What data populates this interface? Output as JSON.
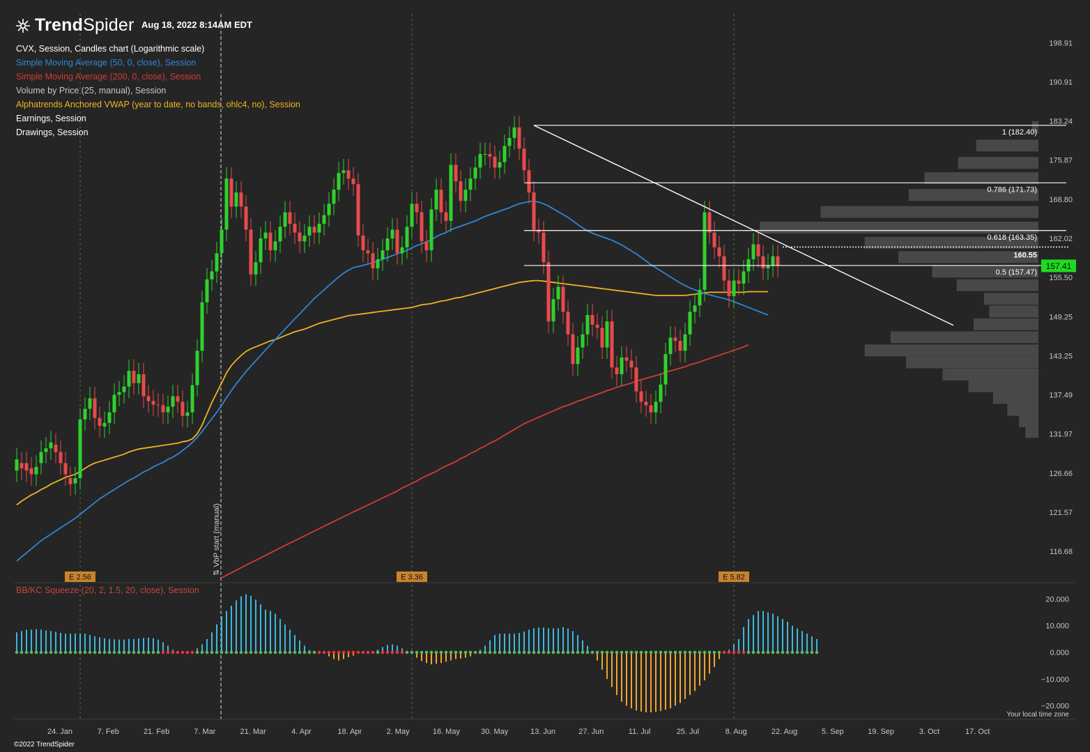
{
  "header": {
    "brand_bold": "Trend",
    "brand_light": "Spider",
    "timestamp": "Aug 18, 2022 8:14AM EDT"
  },
  "legend": [
    {
      "text": "CVX, Session, Candles chart (Logarithmic scale)",
      "color": "#ffffff"
    },
    {
      "text": "Simple Moving Average (50, 0, close), Session",
      "color": "#2f86d6"
    },
    {
      "text": "Simple Moving Average (200, 0, close), Session",
      "color": "#d23b35"
    },
    {
      "text": "Volume by Price (25, manual), Session",
      "color": "#c8c8c8"
    },
    {
      "text": "Alphatrends Anchored VWAP (year to date, no bands, ohlc4, no), Session",
      "color": "#f0b323"
    },
    {
      "text": "Earnings, Session",
      "color": "#ffffff"
    },
    {
      "text": "Drawings, Session",
      "color": "#ffffff"
    }
  ],
  "oscillator_label": "BB/KC Squeeze (20, 2, 1.5, 20, close), Session",
  "footer": {
    "copyright": "©2022 TrendSpider",
    "timezone_note": "Your local time zone"
  },
  "colors": {
    "up": "#2ed12e",
    "down": "#e8494a",
    "sma50": "#2f86d6",
    "sma200": "#d23b35",
    "vwap": "#f0b323",
    "background": "#252525"
  },
  "chart_data": {
    "type": "candlestick",
    "symbol": "CVX",
    "scale": "log",
    "price_ylim": [
      113,
      205
    ],
    "price_ticks": [
      198.91,
      190.91,
      183.24,
      175.87,
      168.8,
      162.02,
      155.5,
      149.25,
      143.25,
      137.49,
      131.97,
      126.66,
      121.57,
      116.68
    ],
    "x_ticks": [
      "24. Jan",
      "7. Feb",
      "21. Feb",
      "7. Mar",
      "21. Mar",
      "4. Apr",
      "18. Apr",
      "2. May",
      "16. May",
      "30. May",
      "13. Jun",
      "27. Jun",
      "11. Jul",
      "25. Jul",
      "8. Aug",
      "22. Aug",
      "5. Sep",
      "19. Sep",
      "3. Oct",
      "17. Oct"
    ],
    "closes": [
      128.5,
      127.3,
      127.0,
      126.5,
      127.5,
      129.5,
      130.0,
      130.8,
      129.5,
      128.0,
      126.5,
      125.2,
      126.0,
      134.0,
      135.5,
      137.0,
      134.2,
      133.1,
      133.5,
      135.0,
      137.5,
      137.9,
      138.7,
      141.0,
      139.2,
      140.5,
      137.3,
      136.6,
      136.1,
      136.0,
      135.0,
      135.8,
      137.3,
      136.5,
      134.5,
      135.0,
      138.9,
      144.0,
      151.5,
      155.2,
      156.5,
      159.5,
      163.5,
      172.5,
      167.5,
      170.0,
      167.5,
      163.5,
      156.0,
      158.0,
      162.0,
      163.0,
      160.0,
      161.5,
      164.0,
      166.5,
      164.5,
      163.0,
      161.5,
      162.5,
      164.0,
      163.0,
      164.5,
      166.0,
      168.0,
      170.5,
      173.5,
      174.0,
      172.5,
      171.5,
      162.5,
      160.0,
      159.5,
      157.0,
      158.5,
      160.0,
      162.0,
      163.5,
      159.5,
      160.5,
      164.0,
      168.0,
      166.5,
      161.5,
      160.0,
      167.0,
      170.5,
      166.5,
      165.0,
      175.0,
      172.0,
      168.5,
      170.5,
      172.5,
      174.5,
      177.0,
      177.0,
      176.5,
      174.5,
      175.5,
      178.5,
      180.0,
      182.0,
      178.0,
      174.0,
      170.0,
      163.5,
      163.0,
      158.0,
      148.5,
      152.0,
      154.0,
      150.0,
      146.5,
      142.0,
      144.5,
      146.5,
      149.5,
      148.0,
      147.5,
      144.5,
      148.5,
      141.5,
      140.5,
      143.0,
      142.5,
      141.5,
      138.0,
      136.5,
      136.0,
      135.0,
      136.5,
      139.0,
      143.5,
      146.0,
      145.5,
      144.0,
      146.5,
      150.0,
      151.0,
      153.5,
      166.5,
      163.0,
      160.5,
      159.0,
      155.0,
      152.5,
      155.0,
      154.5,
      156.5,
      158.5,
      161.0,
      159.0,
      157.0,
      157.5,
      159.0,
      157.41
    ],
    "opens": [
      127.0,
      128.0,
      128.0,
      127.3,
      126.5,
      128.0,
      129.5,
      130.0,
      130.5,
      129.5,
      128.0,
      126.0,
      125.3,
      126.0,
      134.0,
      135.5,
      137.0,
      134.2,
      133.0,
      133.5,
      135.0,
      137.5,
      137.9,
      138.7,
      141.0,
      139.2,
      140.5,
      137.3,
      136.6,
      136.1,
      136.0,
      135.0,
      135.8,
      137.3,
      136.5,
      134.5,
      135.0,
      138.9,
      144.0,
      151.5,
      155.2,
      156.5,
      159.5,
      163.5,
      172.5,
      167.5,
      170.0,
      167.5,
      163.5,
      156.0,
      158.0,
      162.0,
      163.0,
      160.0,
      161.5,
      164.0,
      166.5,
      164.5,
      163.0,
      161.5,
      162.5,
      164.0,
      163.0,
      164.5,
      166.0,
      168.0,
      170.5,
      173.5,
      174.0,
      172.5,
      171.5,
      162.5,
      160.0,
      159.5,
      157.0,
      158.5,
      160.0,
      162.0,
      163.5,
      159.5,
      160.5,
      164.0,
      168.0,
      166.5,
      161.5,
      160.0,
      167.0,
      170.5,
      166.5,
      165.0,
      175.0,
      172.0,
      168.5,
      170.5,
      172.5,
      174.5,
      177.0,
      177.0,
      176.5,
      174.5,
      175.5,
      178.5,
      180.0,
      182.0,
      178.0,
      174.0,
      170.0,
      163.5,
      163.0,
      158.0,
      148.5,
      152.0,
      154.0,
      150.0,
      146.5,
      142.0,
      144.5,
      146.5,
      149.5,
      148.0,
      147.5,
      144.5,
      148.5,
      141.5,
      140.5,
      143.0,
      142.5,
      141.5,
      138.0,
      136.5,
      136.0,
      135.0,
      136.5,
      139.0,
      143.5,
      146.0,
      145.5,
      144.0,
      146.5,
      150.0,
      151.0,
      153.5,
      166.5,
      163.0,
      160.5,
      159.0,
      155.0,
      152.5,
      155.0,
      154.5,
      156.5,
      158.5,
      161.0,
      159.0,
      157.0,
      157.5,
      159.0
    ],
    "sma50": [
      115.5,
      116.0,
      116.5,
      117.0,
      117.5,
      118.0,
      118.4,
      118.8,
      119.2,
      119.6,
      120.0,
      120.4,
      120.8,
      121.3,
      121.8,
      122.3,
      122.8,
      123.3,
      123.7,
      124.1,
      124.5,
      124.9,
      125.3,
      125.7,
      126.0,
      126.4,
      126.8,
      127.1,
      127.5,
      127.8,
      128.1,
      128.5,
      128.8,
      129.2,
      129.7,
      130.2,
      130.8,
      131.5,
      132.3,
      133.2,
      134.1,
      135.0,
      136.0,
      137.1,
      138.1,
      139.1,
      140.0,
      140.9,
      141.7,
      142.5,
      143.3,
      144.1,
      144.9,
      145.7,
      146.5,
      147.3,
      148.1,
      148.9,
      149.7,
      150.5,
      151.3,
      152.1,
      152.8,
      153.5,
      154.2,
      154.9,
      155.6,
      156.2,
      156.7,
      157.1,
      157.3,
      157.5,
      157.7,
      157.9,
      158.2,
      158.5,
      158.8,
      159.1,
      159.4,
      159.7,
      160.0,
      160.4,
      160.8,
      161.1,
      161.4,
      161.8,
      162.3,
      162.7,
      163.0,
      163.5,
      163.8,
      164.1,
      164.4,
      164.7,
      165.0,
      165.4,
      165.8,
      166.1,
      166.4,
      166.7,
      167.0,
      167.3,
      167.7,
      168.0,
      168.2,
      168.4,
      168.4,
      168.3,
      168.0,
      167.6,
      167.1,
      166.6,
      166.1,
      165.6,
      165.0,
      164.4,
      163.8,
      163.3,
      162.9,
      162.6,
      162.3,
      162.0,
      161.7,
      161.3,
      160.9,
      160.4,
      159.9,
      159.4,
      158.8,
      158.2,
      157.6,
      157.1,
      156.6,
      156.1,
      155.6,
      155.1,
      154.6,
      154.2,
      153.8,
      153.5,
      153.2,
      152.9,
      152.7,
      152.5,
      152.3,
      152.1,
      151.9,
      151.6,
      151.3,
      151.0,
      150.7,
      150.4,
      150.1,
      149.8,
      149.5
    ],
    "sma200": [
      null,
      null,
      null,
      null,
      null,
      null,
      null,
      null,
      null,
      null,
      null,
      null,
      null,
      null,
      null,
      null,
      null,
      null,
      null,
      null,
      null,
      null,
      null,
      null,
      null,
      null,
      null,
      null,
      null,
      null,
      null,
      null,
      null,
      null,
      null,
      null,
      null,
      null,
      null,
      null,
      null,
      null,
      113.5,
      113.8,
      114.1,
      114.4,
      114.7,
      115.0,
      115.3,
      115.6,
      115.9,
      116.2,
      116.5,
      116.8,
      117.1,
      117.4,
      117.7,
      118.0,
      118.3,
      118.6,
      118.9,
      119.2,
      119.5,
      119.8,
      120.1,
      120.4,
      120.7,
      121.0,
      121.3,
      121.6,
      121.9,
      122.2,
      122.5,
      122.8,
      123.1,
      123.4,
      123.7,
      124.0,
      124.3,
      124.7,
      125.0,
      125.3,
      125.6,
      126.0,
      126.3,
      126.6,
      126.9,
      127.3,
      127.6,
      127.9,
      128.2,
      128.6,
      128.9,
      129.3,
      129.6,
      130.0,
      130.3,
      130.7,
      131.0,
      131.4,
      131.8,
      132.2,
      132.6,
      133.0,
      133.4,
      133.7,
      134.0,
      134.3,
      134.6,
      134.9,
      135.2,
      135.5,
      135.8,
      136.0,
      136.3,
      136.6,
      136.8,
      137.1,
      137.3,
      137.6,
      137.8,
      138.1,
      138.3,
      138.6,
      138.8,
      139.0,
      139.2,
      139.5,
      139.7,
      139.9,
      140.1,
      140.3,
      140.5,
      140.8,
      141.0,
      141.2,
      141.4,
      141.6,
      141.9,
      142.1,
      142.3,
      142.6,
      142.8,
      143.1,
      143.3,
      143.6,
      143.8,
      144.1,
      144.3,
      144.6,
      144.9
    ],
    "vwap": [
      122.5,
      123.0,
      123.4,
      123.8,
      124.1,
      124.5,
      124.8,
      125.2,
      125.5,
      125.8,
      126.1,
      126.3,
      126.5,
      126.9,
      127.3,
      127.7,
      128.0,
      128.2,
      128.4,
      128.6,
      128.8,
      129.0,
      129.2,
      129.5,
      129.7,
      129.9,
      130.0,
      130.1,
      130.2,
      130.3,
      130.4,
      130.5,
      130.6,
      130.7,
      130.9,
      131.0,
      131.3,
      132.0,
      133.2,
      134.8,
      136.4,
      137.8,
      139.2,
      140.7,
      141.8,
      142.6,
      143.3,
      143.9,
      144.3,
      144.6,
      144.9,
      145.2,
      145.5,
      145.7,
      146.0,
      146.3,
      146.6,
      146.9,
      147.1,
      147.3,
      147.6,
      147.9,
      148.2,
      148.4,
      148.6,
      148.8,
      149.0,
      149.2,
      149.4,
      149.5,
      149.6,
      149.7,
      149.8,
      149.9,
      150.0,
      150.1,
      150.2,
      150.3,
      150.4,
      150.5,
      150.6,
      150.7,
      150.9,
      151.1,
      151.2,
      151.3,
      151.5,
      151.7,
      151.8,
      152.0,
      152.2,
      152.3,
      152.5,
      152.7,
      152.9,
      153.1,
      153.3,
      153.5,
      153.7,
      153.9,
      154.1,
      154.3,
      154.5,
      154.7,
      154.8,
      154.9,
      155.0,
      155.0,
      154.9,
      154.8,
      154.7,
      154.6,
      154.5,
      154.4,
      154.3,
      154.2,
      154.1,
      154.0,
      153.9,
      153.8,
      153.7,
      153.6,
      153.5,
      153.4,
      153.3,
      153.2,
      153.1,
      153.0,
      152.9,
      152.8,
      152.7,
      152.6,
      152.6,
      152.6,
      152.6,
      152.6,
      152.6,
      152.6,
      152.7,
      152.8,
      152.9,
      153.0,
      153.1,
      153.1,
      153.1,
      153.1,
      153.1,
      153.1,
      153.1,
      153.1,
      153.2,
      153.2,
      153.2,
      153.2,
      153.2
    ],
    "fib_levels": [
      {
        "label": "1 (182.40)",
        "price": 182.4
      },
      {
        "label": "0.786 (171.73)",
        "price": 171.73
      },
      {
        "label": "0.618 (163.35)",
        "price": 163.35
      },
      {
        "label": "0.5 (157.47)",
        "price": 157.47
      }
    ],
    "resistance_label": "160.55",
    "resistance_price": 160.55,
    "last_price_label": "157.41",
    "last_price": 157.41,
    "earnings": [
      {
        "label": "E 2.56",
        "bar": 13
      },
      {
        "label": "E 3.36",
        "bar": 81
      },
      {
        "label": "E 5.82",
        "bar": 147
      }
    ],
    "vbp_label": "⇅ VbP start (manual)",
    "volume_profile": [
      {
        "price": 182.0,
        "volume": 0.05
      },
      {
        "price": 178.5,
        "volume": 0.48
      },
      {
        "price": 175.3,
        "volume": 0.62
      },
      {
        "price": 172.5,
        "volume": 0.88
      },
      {
        "price": 169.5,
        "volume": 1.0
      },
      {
        "price": 166.5,
        "volume": 1.68
      },
      {
        "price": 163.8,
        "volume": 2.15
      },
      {
        "price": 161.2,
        "volume": 1.34
      },
      {
        "price": 158.8,
        "volume": 1.08
      },
      {
        "price": 156.4,
        "volume": 0.82
      },
      {
        "price": 154.2,
        "volume": 0.63
      },
      {
        "price": 152.0,
        "volume": 0.42
      },
      {
        "price": 150.0,
        "volume": 0.38
      },
      {
        "price": 148.0,
        "volume": 0.5
      },
      {
        "price": 146.0,
        "volume": 1.14
      },
      {
        "price": 144.0,
        "volume": 1.34
      },
      {
        "price": 142.2,
        "volume": 1.02
      },
      {
        "price": 140.4,
        "volume": 0.74
      },
      {
        "price": 138.7,
        "volume": 0.54
      },
      {
        "price": 137.0,
        "volume": 0.35
      },
      {
        "price": 135.3,
        "volume": 0.24
      },
      {
        "price": 133.7,
        "volume": 0.15
      },
      {
        "price": 132.2,
        "volume": 0.1
      }
    ],
    "oscillator": {
      "ylim": [
        -23,
        23
      ],
      "ticks": [
        "20.000",
        "10.000",
        "0.000",
        "−10.000",
        "−20.000"
      ],
      "tick_values": [
        20,
        10,
        0,
        -10,
        -20
      ],
      "values": [
        7.5,
        8.0,
        8.5,
        8.5,
        8.7,
        8.5,
        8.2,
        8.0,
        7.7,
        7.3,
        7.0,
        7.0,
        7.0,
        7.1,
        7.0,
        6.5,
        6.0,
        5.6,
        5.3,
        5.0,
        4.9,
        4.8,
        4.8,
        5.0,
        5.0,
        5.2,
        5.4,
        5.5,
        5.3,
        4.8,
        3.8,
        2.5,
        1.0,
        0.5,
        0.2,
        0.0,
        0.5,
        1.5,
        3.0,
        5.0,
        7.5,
        10.5,
        13.5,
        15.5,
        17.5,
        19.5,
        21.0,
        21.8,
        21.2,
        19.8,
        18.0,
        16.0,
        15.5,
        14.5,
        12.5,
        10.5,
        8.5,
        6.5,
        4.5,
        2.5,
        0.8,
        0.5,
        0.3,
        -0.5,
        -1.5,
        -2.5,
        -3.0,
        -2.5,
        -1.8,
        -1.2,
        -0.5,
        -0.3,
        -0.3,
        0.5,
        1.0,
        2.0,
        2.8,
        3.0,
        2.5,
        1.5,
        0.5,
        -0.5,
        -2.0,
        -3.3,
        -4.0,
        -4.5,
        -4.3,
        -4.0,
        -3.5,
        -3.0,
        -2.5,
        -2.3,
        -2.0,
        -1.5,
        0.0,
        1.0,
        2.5,
        4.5,
        6.5,
        7.0,
        7.0,
        7.0,
        7.0,
        7.3,
        7.8,
        8.5,
        9.0,
        9.3,
        9.3,
        9.0,
        9.0,
        9.0,
        9.5,
        9.0,
        8.0,
        6.5,
        4.5,
        2.5,
        0.0,
        -3.0,
        -6.5,
        -10.0,
        -13.0,
        -16.0,
        -18.5,
        -20.0,
        -21.0,
        -21.8,
        -22.2,
        -22.5,
        -22.5,
        -22.3,
        -22.0,
        -21.5,
        -21.0,
        -20.0,
        -19.0,
        -17.5,
        -16.0,
        -14.5,
        -12.5,
        -10.5,
        -8.0,
        -5.5,
        -2.5,
        0.0,
        1.0,
        3.0,
        5.0,
        9.5,
        12.5,
        14.0,
        15.5,
        15.5,
        15.0,
        14.5,
        13.5,
        12.5,
        11.5,
        10.0,
        9.0,
        8.0,
        7.0,
        6.0,
        5.0
      ],
      "momentum_colors": [
        "positive",
        "negative"
      ],
      "squeeze_dots": [
        "green",
        "red"
      ]
    }
  }
}
